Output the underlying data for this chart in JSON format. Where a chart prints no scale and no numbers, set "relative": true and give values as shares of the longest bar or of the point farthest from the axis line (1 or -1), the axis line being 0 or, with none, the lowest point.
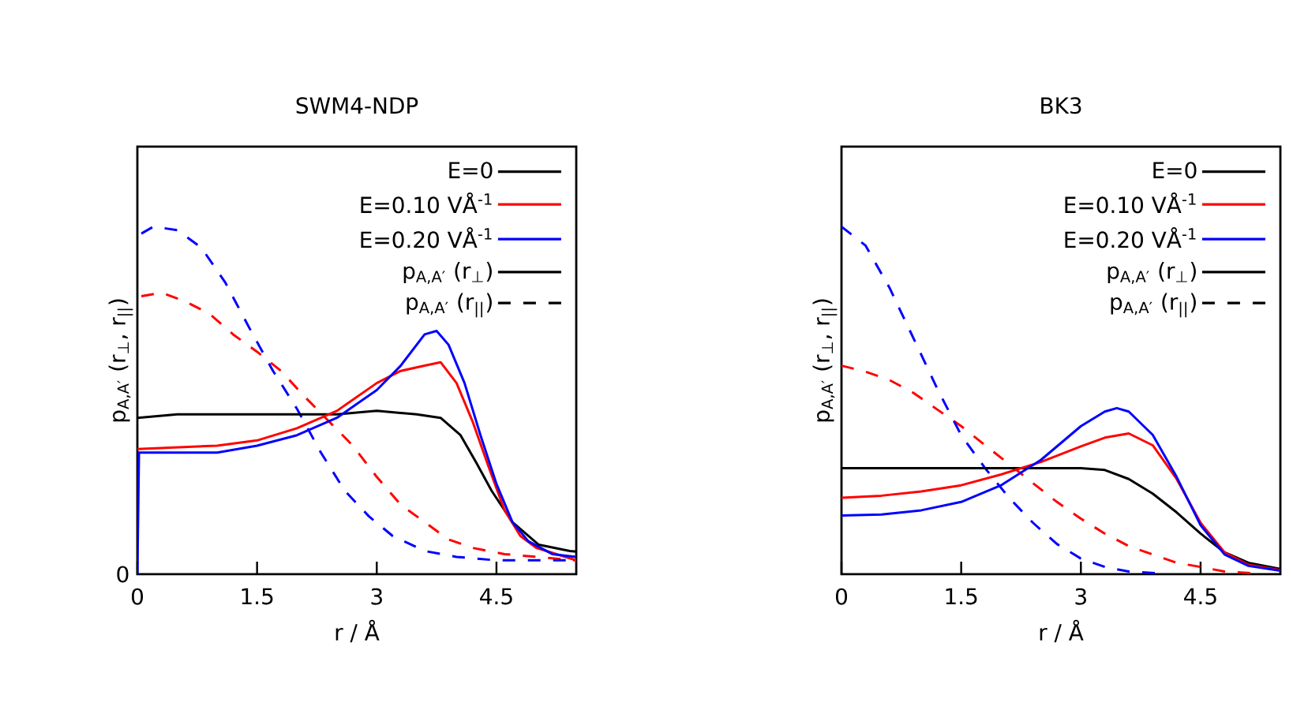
{
  "chart_data": [
    {
      "type": "line",
      "title": "SWM4-NDP",
      "xlabel": "r / Å",
      "ylabel": "p$_{A,A′}$ (r$_{⊥}$, r$_{||}$)",
      "relative": true,
      "xlim": [
        0,
        5.5
      ],
      "xticks": [
        0,
        1.5,
        3,
        4.5
      ],
      "tick_labels": "x",
      "grid": false,
      "legend": "top right",
      "marker": "none",
      "annotations": [
        "p$_{A,A′}$ (r$_{⊥}$)",
        "p$_{A,A′}$ (r$_{||}$)",
        "0"
      ],
      "series": [
        {
          "name": "E=0",
          "color": "#000000",
          "line_style": "solid",
          "x": [
            0,
            0.5,
            1,
            1.5,
            2,
            2.5,
            3,
            3.5,
            3.8,
            4.05,
            4.25,
            4.44,
            4.7,
            5.03,
            5.42,
            5.5
          ],
          "values": [
            0.45,
            0.46,
            0.46,
            0.46,
            0.46,
            0.46,
            0.47,
            0.46,
            0.45,
            0.4,
            0.32,
            0.24,
            0.15,
            0.085,
            0.067,
            0.065
          ]
        },
        {
          "name": "E=0.10 VÅ$^{-1}$",
          "color": "#ff0000",
          "line_style": "solid",
          "x": [
            0,
            1,
            1.5,
            2,
            2.5,
            3,
            3.3,
            3.6,
            3.8,
            4.0,
            4.2,
            4.4,
            4.6,
            4.8,
            5.0,
            5.5
          ],
          "values": [
            0.36,
            0.37,
            0.385,
            0.42,
            0.47,
            0.55,
            0.585,
            0.6,
            0.61,
            0.55,
            0.44,
            0.31,
            0.185,
            0.11,
            0.076,
            0.04
          ]
        },
        {
          "name": "E=0.20 VÅ$^{-1}$",
          "color": "#0000ff",
          "line_style": "solid",
          "x": [
            0,
            0.02,
            1,
            1.5,
            2,
            2.5,
            3,
            3.3,
            3.6,
            3.75,
            3.9,
            4.1,
            4.3,
            4.5,
            4.7,
            4.9,
            5.2,
            5.5
          ],
          "values": [
            0,
            0.35,
            0.35,
            0.37,
            0.4,
            0.45,
            0.53,
            0.6,
            0.69,
            0.7,
            0.66,
            0.55,
            0.4,
            0.26,
            0.15,
            0.095,
            0.058,
            0.05
          ]
        },
        {
          "color": "#ff0000",
          "line_style": "dashed",
          "x": [
            0.05,
            0.3,
            0.6,
            0.9,
            1.2,
            1.5,
            1.8,
            2.1,
            2.4,
            2.7,
            3.0,
            3.3,
            3.6,
            3.9,
            4.2,
            4.6,
            5.0,
            5.5
          ],
          "values": [
            0.8,
            0.81,
            0.785,
            0.75,
            0.69,
            0.64,
            0.585,
            0.51,
            0.44,
            0.37,
            0.28,
            0.2,
            0.15,
            0.1,
            0.076,
            0.058,
            0.05,
            0.04
          ]
        },
        {
          "color": "#0000ff",
          "line_style": "dashed",
          "x": [
            0.05,
            0.2,
            0.5,
            0.8,
            1.1,
            1.4,
            1.7,
            2.0,
            2.3,
            2.6,
            2.9,
            3.2,
            3.6,
            4.0,
            4.5,
            5.0,
            5.5
          ],
          "values": [
            0.98,
            1.0,
            0.99,
            0.94,
            0.84,
            0.71,
            0.585,
            0.476,
            0.35,
            0.24,
            0.167,
            0.11,
            0.067,
            0.05,
            0.04,
            0.04,
            0.04
          ]
        }
      ]
    },
    {
      "type": "line",
      "title": "BK3",
      "xlabel": "r / Å",
      "ylabel": "p$_{A,A′}$ (r$_{⊥}$, r$_{||}$)",
      "relative": true,
      "xlim": [
        0,
        5.5
      ],
      "xticks": [
        0,
        1.5,
        3,
        4.5
      ],
      "tick_labels": "x",
      "grid": false,
      "legend": "top right",
      "marker": "none",
      "annotations": [
        "p$_{A,A′}$ (r$_{⊥}$)",
        "p$_{A,A′}$ (r$_{||}$)"
      ],
      "series": [
        {
          "name": "E=0",
          "color": "#000000",
          "line_style": "solid",
          "x": [
            0,
            1,
            2,
            3,
            3.3,
            3.6,
            3.9,
            4.2,
            4.5,
            4.8,
            5.1,
            5.5
          ],
          "values": [
            0.305,
            0.305,
            0.305,
            0.305,
            0.3,
            0.274,
            0.232,
            0.178,
            0.117,
            0.063,
            0.033,
            0.015
          ]
        },
        {
          "name": "E=0.10 VÅ$^{-1}$",
          "color": "#ff0000",
          "line_style": "solid",
          "x": [
            0,
            0.5,
            1,
            1.5,
            2,
            2.5,
            3,
            3.3,
            3.6,
            3.9,
            4.2,
            4.5,
            4.8,
            5.1,
            5.5
          ],
          "values": [
            0.22,
            0.226,
            0.238,
            0.256,
            0.287,
            0.323,
            0.368,
            0.393,
            0.405,
            0.371,
            0.274,
            0.148,
            0.063,
            0.027,
            0.012
          ]
        },
        {
          "name": "E=0.20 VÅ$^{-1}$",
          "color": "#0000ff",
          "line_style": "solid",
          "x": [
            0,
            0.5,
            1,
            1.5,
            2,
            2.5,
            3,
            3.3,
            3.45,
            3.6,
            3.9,
            4.2,
            4.5,
            4.8,
            5.1,
            5.5
          ],
          "values": [
            0.169,
            0.172,
            0.184,
            0.208,
            0.256,
            0.329,
            0.426,
            0.468,
            0.478,
            0.468,
            0.401,
            0.28,
            0.141,
            0.057,
            0.024,
            0.01
          ]
        },
        {
          "color": "#ff0000",
          "line_style": "dashed",
          "x": [
            0,
            0.3,
            0.6,
            0.9,
            1.2,
            1.5,
            1.8,
            2.1,
            2.4,
            2.7,
            3.0,
            3.3,
            3.6,
            3.9,
            4.2,
            4.5,
            4.8,
            5.2
          ],
          "values": [
            0.6,
            0.583,
            0.559,
            0.522,
            0.474,
            0.426,
            0.371,
            0.317,
            0.262,
            0.208,
            0.16,
            0.117,
            0.081,
            0.057,
            0.033,
            0.021,
            0.008,
            0.002
          ]
        },
        {
          "color": "#0000ff",
          "line_style": "dashed",
          "x": [
            0,
            0.3,
            0.6,
            0.9,
            1.2,
            1.5,
            1.8,
            2.1,
            2.4,
            2.7,
            3.0,
            3.3,
            3.6,
            4.0
          ],
          "values": [
            1.0,
            0.946,
            0.825,
            0.68,
            0.534,
            0.4,
            0.305,
            0.22,
            0.148,
            0.087,
            0.045,
            0.021,
            0.008,
            0.002
          ]
        }
      ]
    }
  ]
}
